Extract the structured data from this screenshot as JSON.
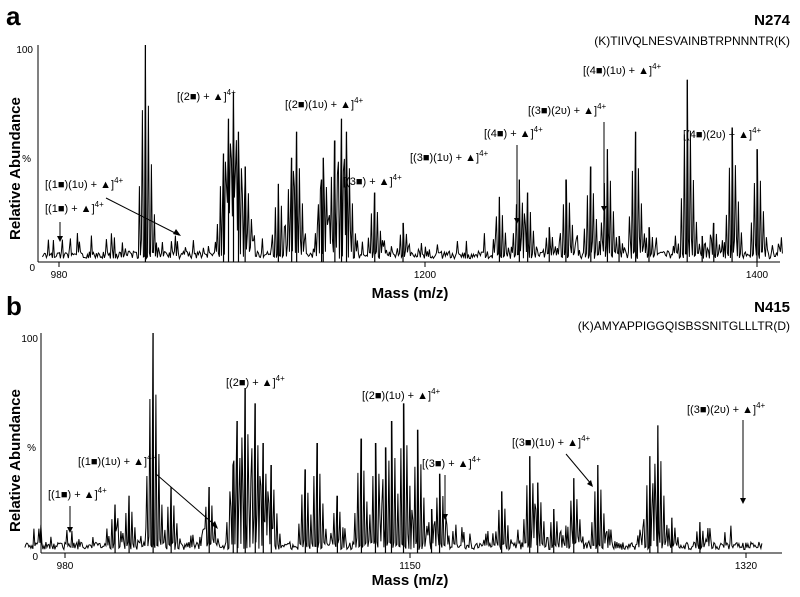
{
  "figure": {
    "panels": [
      {
        "letter": "a",
        "site": "N274",
        "peptide": "(K)TIIVQLNESVAINBTRPNNNTR(K)",
        "xlabel": "Mass (m/z)",
        "ylabel": "Relative Abundance",
        "ytick_top": "100",
        "ytick_mid": "%",
        "ytick_zero": "0",
        "xticks": [
          "980",
          "1200",
          "1400"
        ],
        "annotations": [
          {
            "text": "[(1■) + ▲]",
            "sup": "4+"
          },
          {
            "text": "[(1■)(1ᴜ) + ▲]",
            "sup": "4+"
          },
          {
            "text": "[(2■) + ▲]",
            "sup": "4+"
          },
          {
            "text": "[(2■)(1ᴜ) + ▲]",
            "sup": "4+"
          },
          {
            "text": "[(3■) + ▲]",
            "sup": "4+"
          },
          {
            "text": "[(3■)(1ᴜ) + ▲]",
            "sup": "4+"
          },
          {
            "text": "[(4■) + ▲]",
            "sup": "4+"
          },
          {
            "text": "[(3■)(2ᴜ) + ▲]",
            "sup": "4+"
          },
          {
            "text": "[(4■)(1ᴜ) + ▲]",
            "sup": "4+"
          },
          {
            "text": "[(4■)(2ᴜ) + ▲]",
            "sup": "4+"
          }
        ]
      },
      {
        "letter": "b",
        "site": "N415",
        "peptide": "(K)AMYAPPIGGQISBSSNITGLLLTR(D)",
        "xlabel": "Mass (m/z)",
        "ylabel": "Relative Abundance",
        "ytick_top": "100",
        "ytick_mid": "%",
        "ytick_zero": "0",
        "xticks": [
          "980",
          "1150",
          "1320"
        ],
        "annotations": [
          {
            "text": "[(1■) + ▲]",
            "sup": "4+"
          },
          {
            "text": "[(1■)(1ᴜ) + ▲]",
            "sup": "4+"
          },
          {
            "text": "[(2■) + ▲]",
            "sup": "4+"
          },
          {
            "text": "[(2■)(1ᴜ) + ▲]",
            "sup": "4+"
          },
          {
            "text": "[(3■) + ▲]",
            "sup": "4+"
          },
          {
            "text": "[(3■)(1ᴜ) + ▲]",
            "sup": "4+"
          },
          {
            "text": "[(3■)(2ᴜ) + ▲]",
            "sup": "4+"
          }
        ]
      }
    ]
  },
  "chart_data": [
    {
      "type": "line",
      "xlabel": "Mass (m/z)",
      "ylabel": "Relative Abundance",
      "xlim": [
        970,
        1415
      ],
      "ylim": [
        0,
        100
      ],
      "peaks": [
        [
          1032,
          100
        ],
        [
          1085,
          78
        ],
        [
          1082,
          66
        ],
        [
          1088,
          60
        ],
        [
          1079,
          50
        ],
        [
          1092,
          44
        ],
        [
          1123,
          60
        ],
        [
          1120,
          48
        ],
        [
          1138,
          38
        ],
        [
          1146,
          56
        ],
        [
          1150,
          66
        ],
        [
          1153,
          60
        ],
        [
          1139,
          48
        ],
        [
          1170,
          32
        ],
        [
          1112,
          36
        ],
        [
          1187,
          18
        ],
        [
          1245,
          30
        ],
        [
          1257,
          38
        ],
        [
          1262,
          32
        ],
        [
          1275,
          16
        ],
        [
          1285,
          38
        ],
        [
          1300,
          44
        ],
        [
          1310,
          52
        ],
        [
          1317,
          12
        ],
        [
          1327,
          60
        ],
        [
          1335,
          16
        ],
        [
          1358,
          84
        ],
        [
          1367,
          12
        ],
        [
          1374,
          18
        ],
        [
          1385,
          62
        ],
        [
          1400,
          52
        ]
      ],
      "annotated_peaks": [
        {
          "label": "[(1■) + ▲]4+",
          "x": 988,
          "y": 9
        },
        {
          "label": "[(1■)(1ᴜ) + ▲]4+",
          "x": 1060,
          "y": 10
        },
        {
          "label": "[(2■) + ▲]4+",
          "x": 1086,
          "y": 72
        },
        {
          "label": "[(2■)(1ᴜ) + ▲]4+",
          "x": 1150,
          "y": 67
        },
        {
          "label": "[(3■) + ▲]4+",
          "x": 1170,
          "y": 32
        },
        {
          "label": "[(3■)(1ᴜ) + ▲]4+",
          "x": 1257,
          "y": 40
        },
        {
          "label": "[(4■) + ▲]4+",
          "x": 1275,
          "y": 16
        },
        {
          "label": "[(3■)(2ᴜ) + ▲]4+",
          "x": 1341,
          "y": 19
        },
        {
          "label": "[(4■)(1ᴜ) + ▲]4+",
          "x": 1358,
          "y": 84
        },
        {
          "label": "[(4■)(2ᴜ) + ▲]4+",
          "x": 1400,
          "y": 52
        }
      ]
    },
    {
      "type": "line",
      "xlabel": "Mass (m/z)",
      "ylabel": "Relative Abundance",
      "xlim": [
        960,
        1328
      ],
      "ylim": [
        0,
        100
      ],
      "peaks": [
        [
          1024,
          100
        ],
        [
          1005,
          22
        ],
        [
          1012,
          26
        ],
        [
          1033,
          30
        ],
        [
          1052,
          30
        ],
        [
          1064,
          40
        ],
        [
          1066,
          60
        ],
        [
          1070,
          75
        ],
        [
          1075,
          68
        ],
        [
          1079,
          50
        ],
        [
          1083,
          40
        ],
        [
          1100,
          38
        ],
        [
          1106,
          50
        ],
        [
          1116,
          26
        ],
        [
          1128,
          52
        ],
        [
          1135,
          50
        ],
        [
          1140,
          48
        ],
        [
          1143,
          60
        ],
        [
          1149,
          68
        ],
        [
          1156,
          56
        ],
        [
          1163,
          20
        ],
        [
          1167,
          36
        ],
        [
          1198,
          28
        ],
        [
          1212,
          44
        ],
        [
          1216,
          32
        ],
        [
          1224,
          20
        ],
        [
          1234,
          34
        ],
        [
          1246,
          40
        ],
        [
          1272,
          44
        ],
        [
          1276,
          58
        ],
        [
          1283,
          16
        ],
        [
          1297,
          14
        ]
      ],
      "annotated_peaks": [
        {
          "label": "[(1■) + ▲]4+",
          "x": 984,
          "y": 10
        },
        {
          "label": "[(1■)(1ᴜ) + ▲]4+",
          "x": 1046,
          "y": 10
        },
        {
          "label": "[(2■) + ▲]4+",
          "x": 1070,
          "y": 74
        },
        {
          "label": "[(2■)(1ᴜ) + ▲]4+",
          "x": 1149,
          "y": 66
        },
        {
          "label": "[(3■) + ▲]4+",
          "x": 1163,
          "y": 19
        },
        {
          "label": "[(3■)(1ᴜ) + ▲]4+",
          "x": 1211,
          "y": 44
        },
        {
          "label": "[(3■)(2ᴜ) + ▲]4+",
          "x": 1280,
          "y": 24
        }
      ]
    }
  ]
}
